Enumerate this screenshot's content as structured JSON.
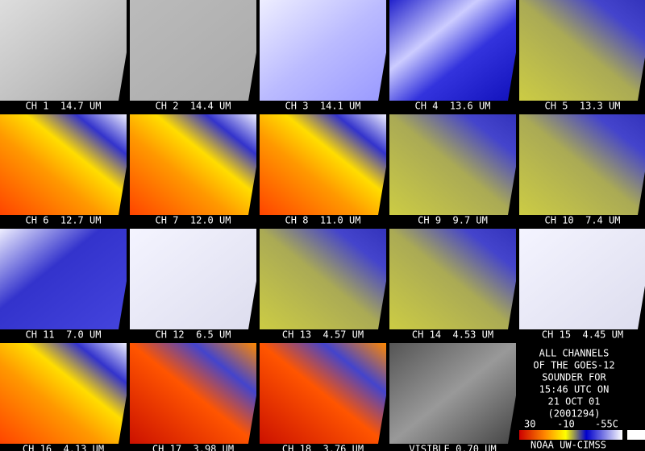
{
  "panels": [
    {
      "label": "CH 1  14.7 UM"
    },
    {
      "label": "CH 2  14.4 UM"
    },
    {
      "label": "CH 3  14.1 UM"
    },
    {
      "label": "CH 4  13.6 UM"
    },
    {
      "label": "CH 5  13.3 UM"
    },
    {
      "label": "CH 6  12.7 UM"
    },
    {
      "label": "CH 7  12.0 UM"
    },
    {
      "label": "CH 8  11.0 UM"
    },
    {
      "label": "CH 9  9.7 UM"
    },
    {
      "label": "CH 10  7.4 UM"
    },
    {
      "label": "CH 11  7.0 UM"
    },
    {
      "label": "CH 12  6.5 UM"
    },
    {
      "label": "CH 13  4.57 UM"
    },
    {
      "label": "CH 14  4.53 UM"
    },
    {
      "label": "CH 15  4.45 UM"
    },
    {
      "label": "CH 16  4.13 UM"
    },
    {
      "label": "CH 17  3.98 UM"
    },
    {
      "label": "CH 18  3.76 UM"
    },
    {
      "label": "VISIBLE 0.70 UM"
    }
  ],
  "info": {
    "lines": [
      "ALL CHANNELS",
      "OF THE GOES-12",
      "SOUNDER FOR",
      "15:46 UTC ON",
      "21 OCT 01",
      "(2001294)"
    ],
    "colorbar_labels": [
      "30",
      "-10",
      "-55C"
    ],
    "credit": "NOAA UW-CIMSS"
  }
}
